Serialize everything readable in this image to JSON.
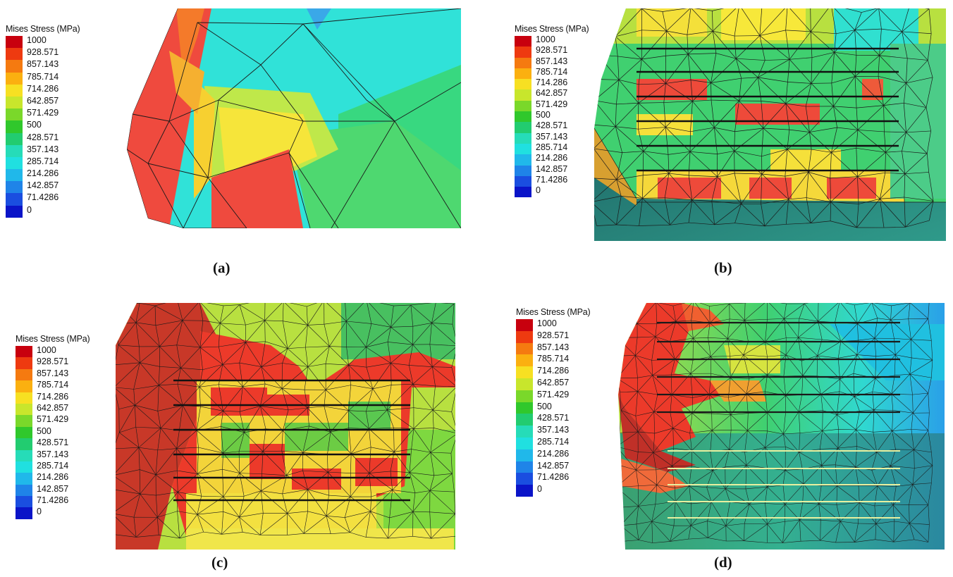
{
  "legend": {
    "title": "Mises Stress (MPa)",
    "labels": [
      "1000",
      "928.571",
      "857.143",
      "785.714",
      "714.286",
      "642.857",
      "571.429",
      "500",
      "428.571",
      "357.143",
      "285.714",
      "214.286",
      "142.857",
      "71.4286",
      "0"
    ],
    "colors": [
      "#c8000e",
      "#ee3a10",
      "#f57a10",
      "#fbb010",
      "#f7e022",
      "#c8e62c",
      "#7ad82a",
      "#30c82c",
      "#22cc70",
      "#26dcb8",
      "#20e0e0",
      "#20b8ea",
      "#1f84e8",
      "#1a4ee0",
      "#0a14c8"
    ]
  },
  "panels": [
    {
      "id": "a",
      "caption": "(a)"
    },
    {
      "id": "b",
      "caption": "(b)"
    },
    {
      "id": "c",
      "caption": "(c)"
    },
    {
      "id": "d",
      "caption": "(d)"
    }
  ]
}
